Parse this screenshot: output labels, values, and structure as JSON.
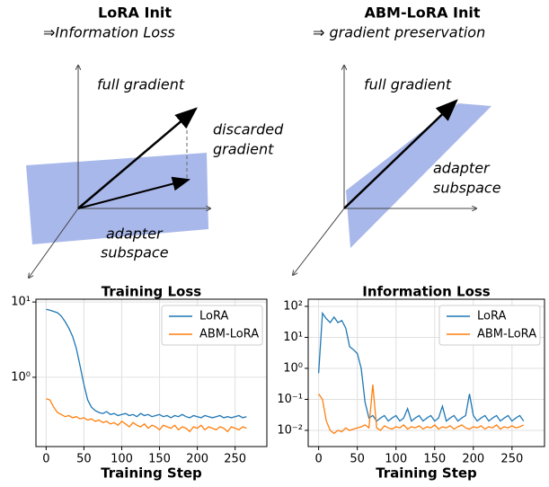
{
  "diagrams": [
    {
      "title": "LoRA Init",
      "subtitle": "⇒Information Loss",
      "labels": [
        "full gradient",
        "discarded",
        "gradient",
        "adapter",
        "subspace"
      ]
    },
    {
      "title": "ABM-LoRA Init",
      "subtitle": "⇒ gradient preservation",
      "labels": [
        "full gradient",
        "adapter",
        "subspace"
      ]
    }
  ],
  "chart_data": [
    {
      "type": "line",
      "title": "Training Loss",
      "xlabel": "Training Step",
      "log_y": true,
      "grid": true,
      "legend": "upper right",
      "xlim": [
        -13.5,
        292
      ],
      "xticks": [
        0,
        50,
        100,
        150,
        200,
        250
      ],
      "ylim": [
        0.12,
        10.9
      ],
      "yticks": [
        {
          "value": 1,
          "label": "10⁰"
        },
        {
          "value": 10,
          "label": "10¹"
        }
      ],
      "x": [
        0,
        5,
        10,
        15,
        20,
        25,
        30,
        35,
        40,
        45,
        50,
        55,
        60,
        65,
        70,
        75,
        80,
        85,
        90,
        95,
        100,
        105,
        110,
        115,
        120,
        125,
        130,
        135,
        140,
        145,
        150,
        155,
        160,
        165,
        170,
        175,
        180,
        185,
        190,
        195,
        200,
        205,
        210,
        215,
        220,
        225,
        230,
        235,
        240,
        245,
        250,
        255,
        260,
        265
      ],
      "series": [
        {
          "name": "LoRA",
          "color": "#1f77b4",
          "values": [
            8,
            7.8,
            7.5,
            7.2,
            6.5,
            5.5,
            4.5,
            3.5,
            2.4,
            1.4,
            0.8,
            0.5,
            0.4,
            0.36,
            0.34,
            0.33,
            0.35,
            0.32,
            0.33,
            0.31,
            0.32,
            0.33,
            0.31,
            0.32,
            0.3,
            0.33,
            0.31,
            0.32,
            0.3,
            0.31,
            0.32,
            0.3,
            0.31,
            0.29,
            0.31,
            0.3,
            0.32,
            0.3,
            0.29,
            0.31,
            0.3,
            0.29,
            0.31,
            0.3,
            0.29,
            0.3,
            0.31,
            0.29,
            0.3,
            0.29,
            0.3,
            0.31,
            0.29,
            0.3
          ]
        },
        {
          "name": "ABM-LoRA",
          "color": "#ff7f0e",
          "values": [
            0.52,
            0.5,
            0.4,
            0.34,
            0.32,
            0.3,
            0.31,
            0.29,
            0.3,
            0.28,
            0.29,
            0.27,
            0.28,
            0.26,
            0.27,
            0.25,
            0.26,
            0.24,
            0.25,
            0.23,
            0.26,
            0.24,
            0.22,
            0.25,
            0.23,
            0.22,
            0.24,
            0.21,
            0.23,
            0.22,
            0.2,
            0.23,
            0.22,
            0.21,
            0.23,
            0.2,
            0.22,
            0.21,
            0.19,
            0.22,
            0.21,
            0.23,
            0.2,
            0.22,
            0.21,
            0.2,
            0.22,
            0.21,
            0.19,
            0.22,
            0.21,
            0.2,
            0.22,
            0.21
          ]
        }
      ]
    },
    {
      "type": "line",
      "title": "Information Loss",
      "xlabel": "Training Step",
      "log_y": true,
      "grid": true,
      "legend": "upper right",
      "xlim": [
        -13.5,
        292
      ],
      "xticks": [
        0,
        50,
        100,
        150,
        200,
        250
      ],
      "ylim": [
        0.003,
        170
      ],
      "yticks": [
        {
          "value": 0.01,
          "label": "10⁻²"
        },
        {
          "value": 0.1,
          "label": "10⁻¹"
        },
        {
          "value": 1,
          "label": "10⁰"
        },
        {
          "value": 10,
          "label": "10¹"
        },
        {
          "value": 100,
          "label": "10²"
        }
      ],
      "x": [
        0,
        5,
        10,
        15,
        20,
        25,
        30,
        35,
        40,
        45,
        50,
        55,
        60,
        65,
        70,
        75,
        80,
        85,
        90,
        95,
        100,
        105,
        110,
        115,
        120,
        125,
        130,
        135,
        140,
        145,
        150,
        155,
        160,
        165,
        170,
        175,
        180,
        185,
        190,
        195,
        200,
        205,
        210,
        215,
        220,
        225,
        230,
        235,
        240,
        245,
        250,
        255,
        260,
        265
      ],
      "series": [
        {
          "name": "LoRA",
          "color": "#1f77b4",
          "values": [
            0.7,
            60,
            40,
            30,
            45,
            30,
            35,
            20,
            5,
            4,
            3,
            1,
            0.08,
            0.025,
            0.03,
            0.02,
            0.025,
            0.03,
            0.02,
            0.025,
            0.03,
            0.02,
            0.025,
            0.05,
            0.02,
            0.025,
            0.03,
            0.02,
            0.025,
            0.03,
            0.02,
            0.025,
            0.06,
            0.02,
            0.025,
            0.03,
            0.02,
            0.025,
            0.03,
            0.15,
            0.03,
            0.02,
            0.025,
            0.03,
            0.02,
            0.025,
            0.03,
            0.02,
            0.025,
            0.03,
            0.02,
            0.025,
            0.03,
            0.02
          ]
        },
        {
          "name": "ABM-LoRA",
          "color": "#ff7f0e",
          "values": [
            0.15,
            0.1,
            0.02,
            0.01,
            0.008,
            0.01,
            0.009,
            0.012,
            0.01,
            0.011,
            0.012,
            0.013,
            0.015,
            0.012,
            0.3,
            0.012,
            0.01,
            0.014,
            0.012,
            0.011,
            0.013,
            0.012,
            0.015,
            0.011,
            0.013,
            0.012,
            0.014,
            0.011,
            0.013,
            0.012,
            0.015,
            0.011,
            0.013,
            0.012,
            0.014,
            0.011,
            0.013,
            0.015,
            0.012,
            0.011,
            0.013,
            0.012,
            0.014,
            0.011,
            0.013,
            0.012,
            0.015,
            0.011,
            0.013,
            0.012,
            0.014,
            0.012,
            0.013,
            0.015
          ]
        }
      ]
    }
  ]
}
